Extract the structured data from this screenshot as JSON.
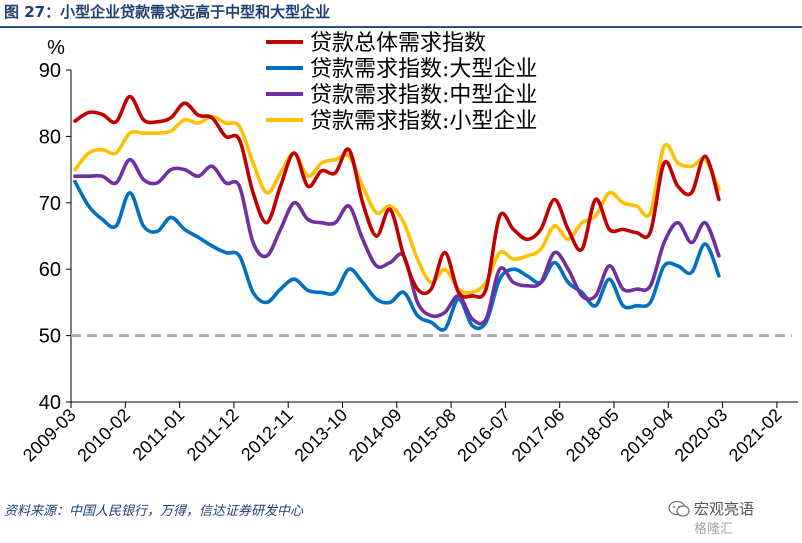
{
  "figure": {
    "title": "图 27：小型企业贷款需求远高于中型和大型企业",
    "source": "资料来源：中国人民银行，万得，信达证券研发中心",
    "watermark": "宏观亮语",
    "watermark_sub": "格隆汇"
  },
  "chart_data": {
    "type": "line",
    "y_unit": "%",
    "ylim": [
      40,
      90
    ],
    "yticks": [
      40,
      50,
      60,
      70,
      80,
      90
    ],
    "x_tick_labels": [
      "2009-03",
      "2010-02",
      "2011-01",
      "2011-12",
      "2012-11",
      "2013-10",
      "2014-09",
      "2015-08",
      "2016-07",
      "2017-06",
      "2018-05",
      "2019-04",
      "2020-03",
      "2021-02"
    ],
    "x_range": [
      "2009-03",
      "2021-06"
    ],
    "reference_line": {
      "y": 50,
      "color": "#aaaaaa",
      "style": "dashed"
    },
    "legend_position": "top-center",
    "grid": false,
    "series": [
      {
        "name": "贷款总体需求指数",
        "color": "#c00000",
        "values": [
          82.3,
          83.6,
          83.3,
          82.2,
          86.0,
          82.5,
          82.2,
          82.8,
          85.0,
          83.2,
          82.8,
          80.0,
          79.5,
          71.5,
          67.0,
          72.5,
          77.5,
          72.5,
          74.8,
          74.5,
          78.0,
          70.0,
          65.0,
          69.0,
          62.0,
          57.0,
          57.0,
          62.5,
          56.5,
          56.0,
          57.0,
          68.0,
          66.0,
          64.5,
          66.0,
          70.5,
          66.0,
          63.0,
          70.5,
          66.0,
          66.0,
          65.5,
          65.6,
          76.0,
          72.5,
          71.5,
          77.0,
          70.5
        ]
      },
      {
        "name": "贷款需求指数:大型企业",
        "color": "#0070c0",
        "values": [
          73.2,
          69.5,
          67.5,
          66.5,
          71.5,
          66.5,
          65.7,
          67.8,
          66.0,
          64.8,
          63.5,
          62.5,
          62.0,
          56.5,
          55.0,
          57.0,
          58.5,
          56.8,
          56.5,
          56.5,
          60.0,
          58.0,
          55.5,
          55.0,
          56.5,
          53.0,
          52.0,
          51.0,
          55.5,
          51.5,
          52.0,
          58.5,
          60.0,
          59.0,
          58.0,
          61.0,
          58.0,
          56.5,
          54.5,
          58.5,
          54.5,
          54.5,
          55.0,
          60.5,
          60.5,
          59.5,
          63.8,
          59.0
        ]
      },
      {
        "name": "贷款需求指数:中型企业",
        "color": "#7030a0",
        "values": [
          74.0,
          74.0,
          74.0,
          73.0,
          76.5,
          73.5,
          73.0,
          75.0,
          75.0,
          74.0,
          75.5,
          73.0,
          72.5,
          64.0,
          62.0,
          66.0,
          70.0,
          67.5,
          67.0,
          67.0,
          69.5,
          64.5,
          60.5,
          61.0,
          62.0,
          55.0,
          53.0,
          53.5,
          56.0,
          52.5,
          52.5,
          60.0,
          58.0,
          57.5,
          58.0,
          62.5,
          60.0,
          56.0,
          56.0,
          60.5,
          57.0,
          57.0,
          57.5,
          64.0,
          67.0,
          64.0,
          67.0,
          62.0
        ]
      },
      {
        "name": "贷款需求指数:小型企业",
        "color": "#ffc000",
        "values": [
          75.0,
          77.5,
          78.0,
          77.5,
          80.5,
          80.5,
          80.5,
          80.8,
          82.5,
          82.0,
          83.0,
          82.0,
          81.5,
          76.0,
          71.5,
          74.5,
          77.5,
          74.0,
          76.0,
          76.5,
          77.0,
          72.5,
          68.5,
          69.5,
          67.0,
          61.5,
          58.0,
          60.0,
          57.0,
          56.5,
          58.0,
          62.5,
          61.5,
          62.0,
          63.0,
          66.5,
          64.5,
          67.0,
          68.0,
          71.5,
          70.0,
          69.5,
          68.5,
          78.5,
          76.0,
          75.5,
          76.5,
          72.0
        ]
      }
    ]
  }
}
